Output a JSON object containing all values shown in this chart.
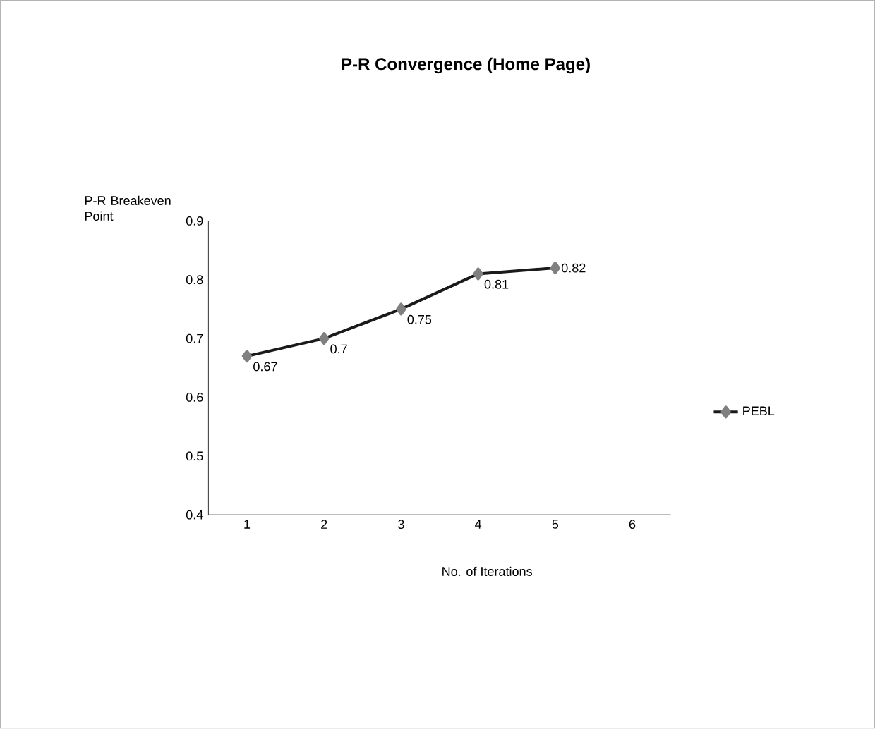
{
  "chart_data": {
    "type": "line",
    "title": "P-R Convergence (Home Page)",
    "xlabel": "No. of Iterations",
    "ylabel": "P-R Breakeven Point",
    "categories": [
      "1",
      "2",
      "3",
      "4",
      "5",
      "6"
    ],
    "series": [
      {
        "name": "PEBL",
        "color": "#1a1a1a",
        "values": [
          0.67,
          0.7,
          0.75,
          0.81,
          0.82,
          null
        ]
      }
    ],
    "ylim": [
      0.4,
      0.9
    ],
    "yticks": [
      0.4,
      0.5,
      0.6,
      0.7,
      0.8,
      0.9
    ],
    "data_labels": true,
    "legend": "right",
    "marker": "diamond",
    "line_style": "solid",
    "grid": false
  }
}
